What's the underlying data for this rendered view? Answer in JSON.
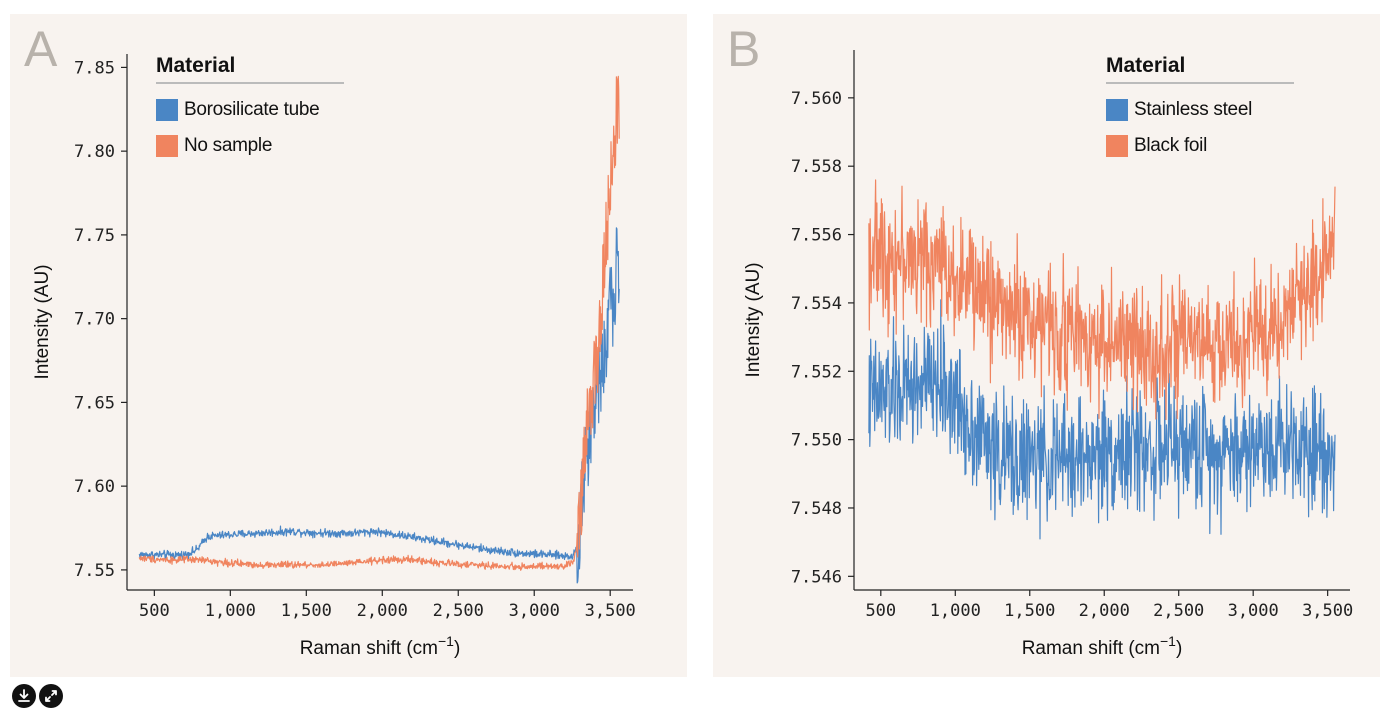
{
  "colors": {
    "blue": "#4a86c5",
    "orange": "#f0845f",
    "panel_bg": "#f8f3ef",
    "letter": "#b8b2ab"
  },
  "icons": [
    "download-icon",
    "expand-icon"
  ],
  "chart_data": [
    {
      "type": "line",
      "panel_letter": "A",
      "xlabel": "Raman shift (cm",
      "xlabel_sup": "−1",
      "xlabel_end": ")",
      "ylabel": "Intensity (AU)",
      "xlim": [
        320,
        3650
      ],
      "ylim": [
        7.538,
        7.858
      ],
      "xticks": [
        500,
        1000,
        1500,
        2000,
        2500,
        3000,
        3500
      ],
      "xtick_labels": [
        "500",
        "1,000",
        "1,500",
        "2,000",
        "2,500",
        "3,000",
        "3,500"
      ],
      "yticks": [
        7.55,
        7.6,
        7.65,
        7.7,
        7.75,
        7.8,
        7.85
      ],
      "ytick_labels": [
        "7.55",
        "7.60",
        "7.65",
        "7.70",
        "7.75",
        "7.80",
        "7.85"
      ],
      "legend": {
        "title": "Material",
        "placement": "top-left"
      },
      "series": [
        {
          "name": "Borosilicate tube",
          "color": "#4a86c5",
          "noise": 0.0015,
          "x": [
            400,
            700,
            780,
            850,
            1000,
            1200,
            1400,
            1600,
            1800,
            1950,
            2100,
            2300,
            2500,
            2700,
            2900,
            3100,
            3250,
            3280,
            3300,
            3320,
            3350,
            3380,
            3420,
            3450,
            3480,
            3500,
            3520,
            3540,
            3560
          ],
          "y": [
            7.559,
            7.559,
            7.562,
            7.57,
            7.571,
            7.572,
            7.573,
            7.572,
            7.572,
            7.573,
            7.571,
            7.568,
            7.565,
            7.562,
            7.56,
            7.559,
            7.558,
            7.563,
            7.575,
            7.6,
            7.62,
            7.64,
            7.66,
            7.67,
            7.69,
            7.71,
            7.7,
            7.73,
            7.72
          ]
        },
        {
          "name": "No sample",
          "color": "#f0845f",
          "noise": 0.0013,
          "x": [
            400,
            600,
            800,
            1000,
            1200,
            1400,
            1600,
            1800,
            2000,
            2200,
            2400,
            2600,
            2800,
            3000,
            3200,
            3260,
            3290,
            3310,
            3330,
            3360,
            3390,
            3420,
            3450,
            3480,
            3500,
            3520,
            3540,
            3560
          ],
          "y": [
            7.557,
            7.556,
            7.556,
            7.554,
            7.553,
            7.553,
            7.553,
            7.554,
            7.556,
            7.556,
            7.554,
            7.553,
            7.552,
            7.552,
            7.552,
            7.555,
            7.57,
            7.59,
            7.62,
            7.65,
            7.66,
            7.68,
            7.72,
            7.75,
            7.78,
            7.8,
            7.82,
            7.83
          ]
        }
      ]
    },
    {
      "type": "line",
      "panel_letter": "B",
      "xlabel": "Raman shift (cm",
      "xlabel_sup": "−1",
      "xlabel_end": ")",
      "ylabel": "Intensity (AU)",
      "xlim": [
        320,
        3650
      ],
      "ylim": [
        7.5456,
        7.5614
      ],
      "xticks": [
        500,
        1000,
        1500,
        2000,
        2500,
        3000,
        3500
      ],
      "xtick_labels": [
        "500",
        "1,000",
        "1,500",
        "2,000",
        "2,500",
        "3,000",
        "3,500"
      ],
      "yticks": [
        7.546,
        7.548,
        7.55,
        7.552,
        7.554,
        7.556,
        7.558,
        7.56
      ],
      "ytick_labels": [
        "7.546",
        "7.548",
        "7.550",
        "7.552",
        "7.554",
        "7.556",
        "7.558",
        "7.560"
      ],
      "legend": {
        "title": "Material",
        "placement": "top-right"
      },
      "series": [
        {
          "name": "Stainless steel",
          "color": "#4a86c5",
          "noise": 0.0011,
          "x": [
            420,
            700,
            900,
            1100,
            1300,
            1500,
            1700,
            1900,
            2100,
            2300,
            2500,
            2700,
            2900,
            3100,
            3300,
            3550
          ],
          "y": [
            7.5512,
            7.5515,
            7.5517,
            7.5505,
            7.5495,
            7.5494,
            7.5494,
            7.5495,
            7.5497,
            7.5497,
            7.5498,
            7.5497,
            7.5497,
            7.5499,
            7.55,
            7.5497
          ]
        },
        {
          "name": "Black foil",
          "color": "#f0845f",
          "noise": 0.0011,
          "x": [
            420,
            700,
            900,
            1100,
            1300,
            1500,
            1700,
            1900,
            2100,
            2300,
            2500,
            2700,
            2900,
            3100,
            3300,
            3450,
            3550
          ],
          "y": [
            7.5555,
            7.5553,
            7.5552,
            7.5545,
            7.554,
            7.5535,
            7.5532,
            7.553,
            7.5528,
            7.5527,
            7.5527,
            7.5527,
            7.5528,
            7.5532,
            7.554,
            7.555,
            7.5565
          ]
        }
      ]
    }
  ]
}
